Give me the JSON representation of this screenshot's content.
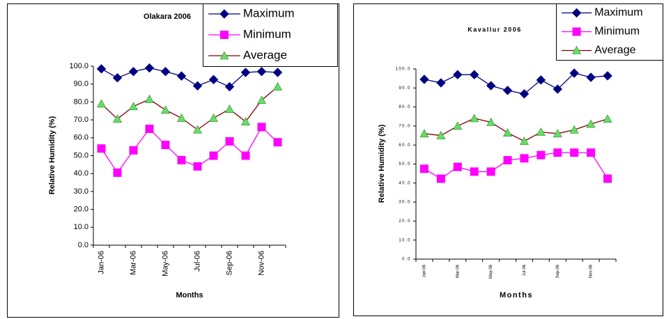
{
  "chart_data": [
    {
      "type": "line",
      "title": "Olakara 2006",
      "x_label": "Months",
      "y_label": "Relative Humidity (%)",
      "categories": [
        "Jan-06",
        null,
        "Mar-06",
        null,
        "May-06",
        null,
        "Jul-06",
        null,
        "Sep-06",
        null,
        "Nov-06",
        null
      ],
      "series": [
        {
          "name": "Maximum",
          "color": "#000080",
          "marker": "diamond",
          "marker_color": "#000080",
          "values": [
            98.5,
            93.5,
            97,
            99,
            97,
            94.5,
            89,
            92.5,
            88.5,
            96.5,
            97,
            96.5
          ]
        },
        {
          "name": "Minimum",
          "color": "#ff00ff",
          "marker": "square",
          "marker_color": "#ff00ff",
          "values": [
            54,
            40.5,
            53,
            65,
            56,
            47.5,
            44,
            50,
            58,
            50,
            66,
            57.5
          ]
        },
        {
          "name": "Average",
          "color": "#800000",
          "marker": "triangle",
          "marker_color": "#66dd66",
          "values": [
            79,
            70.5,
            77.5,
            81.5,
            75.5,
            71,
            64.5,
            71,
            76,
            69,
            81,
            88.5
          ]
        }
      ],
      "ylim": [
        0,
        100
      ],
      "yticks": [
        {
          "value": 0,
          "label": "0.0"
        },
        {
          "value": 10,
          "label": "10.0"
        },
        {
          "value": 20,
          "label": "20.0"
        },
        {
          "value": 30,
          "label": "30.0"
        },
        {
          "value": 40,
          "label": "40.0"
        },
        {
          "value": 50,
          "label": "50.0"
        },
        {
          "value": 60,
          "label": "60.0"
        },
        {
          "value": 70,
          "label": "70.0"
        },
        {
          "value": 80,
          "label": "80.0"
        },
        {
          "value": 90,
          "label": "90.0"
        },
        {
          "value": 100,
          "label": "100.0"
        }
      ]
    },
    {
      "type": "line",
      "title": "Kavallur 2006",
      "x_label": "Months",
      "y_label": "Relative Humidity (%)",
      "categories": [
        "Jan-06",
        null,
        "Mar-06",
        null,
        "May-06",
        null,
        "Jul-06",
        null,
        "Sep-06",
        null,
        "Nov-06",
        null
      ],
      "series": [
        {
          "name": "Maximum",
          "color": "#000080",
          "marker": "diamond",
          "marker_color": "#000080",
          "values": [
            94.5,
            92.7,
            97,
            97,
            91.2,
            88.7,
            86.9,
            94.2,
            89.4,
            97.8,
            95.6,
            96.4
          ]
        },
        {
          "name": "Minimum",
          "color": "#ff00ff",
          "marker": "square",
          "marker_color": "#ff00ff",
          "values": [
            47.5,
            42.3,
            48.5,
            46,
            46,
            52,
            53,
            54.7,
            56,
            56,
            56,
            42.3
          ]
        },
        {
          "name": "Average",
          "color": "#800000",
          "marker": "triangle",
          "marker_color": "#66dd66",
          "values": [
            66,
            65,
            70,
            74,
            72,
            66.4,
            62,
            66.8,
            66,
            68,
            71,
            73.7
          ]
        }
      ],
      "ylim": [
        0,
        100
      ],
      "yticks": [
        {
          "value": 0,
          "label": "0.0"
        },
        {
          "value": 10,
          "label": "10.0"
        },
        {
          "value": 20,
          "label": "20.0"
        },
        {
          "value": 30,
          "label": "30.0"
        },
        {
          "value": 40,
          "label": "40.0"
        },
        {
          "value": 50,
          "label": "50.0"
        },
        {
          "value": 60,
          "label": "60.0"
        },
        {
          "value": 70,
          "label": "70.0"
        },
        {
          "value": 80,
          "label": "80.0"
        },
        {
          "value": 90,
          "label": "90.0"
        },
        {
          "value": 100,
          "label": "100.0"
        }
      ]
    }
  ]
}
